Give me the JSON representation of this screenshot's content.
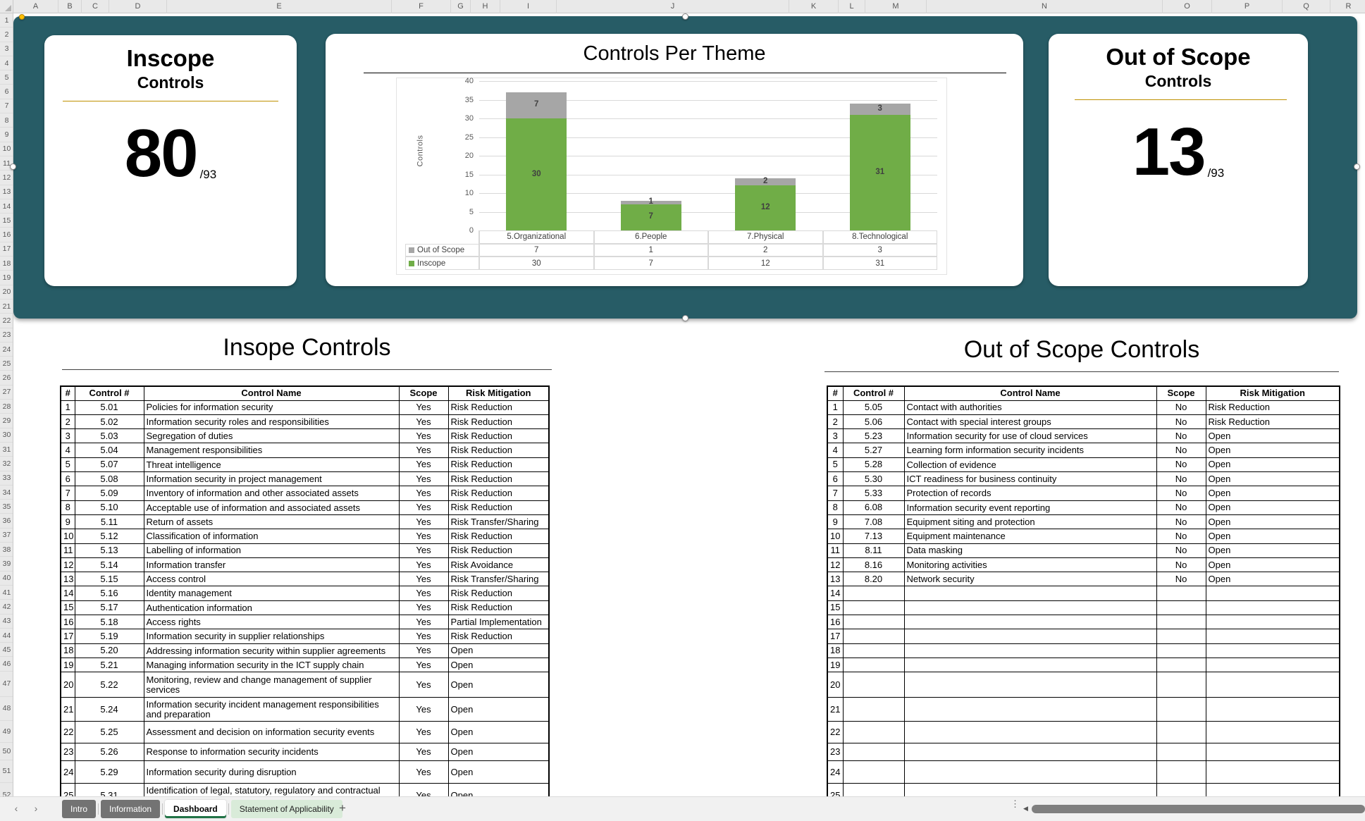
{
  "spreadsheet": {
    "column_letters": [
      "A",
      "B",
      "C",
      "D",
      "E",
      "F",
      "G",
      "H",
      "I",
      "J",
      "K",
      "L",
      "M",
      "N",
      "O",
      "P",
      "Q",
      "R"
    ],
    "row_count": 52
  },
  "banner": {
    "color": "#275C66",
    "inscope_card": {
      "title": "Inscope",
      "subtitle": "Controls",
      "value": "80",
      "total": "/93"
    },
    "outscope_card": {
      "title": "Out of Scope",
      "subtitle": "Controls",
      "value": "13",
      "total": "/93"
    }
  },
  "chart_data": {
    "type": "bar",
    "stacked": true,
    "title": "Controls Per Theme",
    "ylabel": "Controls",
    "ylim": [
      0,
      40
    ],
    "ytick_step": 5,
    "grid": true,
    "legend_position": "data-table-left",
    "categories": [
      "5.Organizational",
      "6.People",
      "7.Physical",
      "8.Technological"
    ],
    "series": [
      {
        "name": "Inscope",
        "color": "#70AD47",
        "values": [
          30,
          7,
          12,
          31
        ]
      },
      {
        "name": "Out of Scope",
        "color": "#A6A6A6",
        "values": [
          7,
          1,
          2,
          3
        ]
      }
    ]
  },
  "left_table": {
    "title": "Insope Controls",
    "headers": [
      "#",
      "Control #",
      "Control Name",
      "Scope",
      "Risk Mitigation"
    ],
    "rows": [
      [
        "1",
        "5.01",
        "Policies for information security",
        "Yes",
        "Risk Reduction"
      ],
      [
        "2",
        "5.02",
        "Information security roles and responsibilities",
        "Yes",
        "Risk Reduction"
      ],
      [
        "3",
        "5.03",
        "Segregation of duties",
        "Yes",
        "Risk Reduction"
      ],
      [
        "4",
        "5.04",
        "Management responsibilities",
        "Yes",
        "Risk Reduction"
      ],
      [
        "5",
        "5.07",
        "Threat intelligence",
        "Yes",
        "Risk Reduction"
      ],
      [
        "6",
        "5.08",
        "Information security in project management",
        "Yes",
        "Risk Reduction"
      ],
      [
        "7",
        "5.09",
        "Inventory of information and other associated assets",
        "Yes",
        "Risk Reduction"
      ],
      [
        "8",
        "5.10",
        "Acceptable use of information and associated assets",
        "Yes",
        "Risk Reduction"
      ],
      [
        "9",
        "5.11",
        "Return of assets",
        "Yes",
        "Risk Transfer/Sharing"
      ],
      [
        "10",
        "5.12",
        "Classification of information",
        "Yes",
        "Risk Reduction"
      ],
      [
        "11",
        "5.13",
        "Labelling of information",
        "Yes",
        "Risk Reduction"
      ],
      [
        "12",
        "5.14",
        "Information transfer",
        "Yes",
        "Risk Avoidance"
      ],
      [
        "13",
        "5.15",
        "Access control",
        "Yes",
        "Risk Transfer/Sharing"
      ],
      [
        "14",
        "5.16",
        "Identity management",
        "Yes",
        "Risk Reduction"
      ],
      [
        "15",
        "5.17",
        "Authentication information",
        "Yes",
        "Risk Reduction"
      ],
      [
        "16",
        "5.18",
        "Access rights",
        "Yes",
        "Partial Implementation"
      ],
      [
        "17",
        "5.19",
        "Information security in supplier relationships",
        "Yes",
        "Risk Reduction"
      ],
      [
        "18",
        "5.20",
        "Addressing information security within supplier agreements",
        "Yes",
        "Open"
      ],
      [
        "19",
        "5.21",
        "Managing information security in the ICT supply chain",
        "Yes",
        "Open"
      ],
      [
        "20",
        "5.22",
        "Monitoring, review and change management of supplier services",
        "Yes",
        "Open"
      ],
      [
        "21",
        "5.24",
        "Information security incident management responsibilities and preparation",
        "Yes",
        "Open"
      ],
      [
        "22",
        "5.25",
        "Assessment and decision on information security events",
        "Yes",
        "Open"
      ],
      [
        "23",
        "5.26",
        "Response to information security incidents",
        "Yes",
        "Open"
      ],
      [
        "24",
        "5.29",
        "Information security during disruption",
        "Yes",
        "Open"
      ],
      [
        "25",
        "5.31",
        "Identification of legal, statutory, regulatory and contractual requirements",
        "Yes",
        "Open"
      ]
    ]
  },
  "right_table": {
    "title": "Out of Scope Controls",
    "headers": [
      "#",
      "Control #",
      "Control Name",
      "Scope",
      "Risk Mitigation"
    ],
    "rows": [
      [
        "1",
        "5.05",
        "Contact with authorities",
        "No",
        "Risk Reduction"
      ],
      [
        "2",
        "5.06",
        "Contact with special interest groups",
        "No",
        "Risk Reduction"
      ],
      [
        "3",
        "5.23",
        "Information security for use of cloud services",
        "No",
        "Open"
      ],
      [
        "4",
        "5.27",
        "Learning form information security incidents",
        "No",
        "Open"
      ],
      [
        "5",
        "5.28",
        "Collection of evidence",
        "No",
        "Open"
      ],
      [
        "6",
        "5.30",
        "ICT readiness for business continuity",
        "No",
        "Open"
      ],
      [
        "7",
        "5.33",
        "Protection of records",
        "No",
        "Open"
      ],
      [
        "8",
        "6.08",
        "Information security event reporting",
        "No",
        "Open"
      ],
      [
        "9",
        "7.08",
        "Equipment siting and protection",
        "No",
        "Open"
      ],
      [
        "10",
        "7.13",
        "Equipment maintenance",
        "No",
        "Open"
      ],
      [
        "11",
        "8.11",
        "Data masking",
        "No",
        "Open"
      ],
      [
        "12",
        "8.16",
        "Monitoring activities",
        "No",
        "Open"
      ],
      [
        "13",
        "8.20",
        "Network security",
        "No",
        "Open"
      ],
      [
        "14",
        "",
        "",
        "",
        ""
      ],
      [
        "15",
        "",
        "",
        "",
        ""
      ],
      [
        "16",
        "",
        "",
        "",
        ""
      ],
      [
        "17",
        "",
        "",
        "",
        ""
      ],
      [
        "18",
        "",
        "",
        "",
        ""
      ],
      [
        "19",
        "",
        "",
        "",
        ""
      ],
      [
        "20",
        "",
        "",
        "",
        ""
      ],
      [
        "21",
        "",
        "",
        "",
        ""
      ],
      [
        "22",
        "",
        "",
        "",
        ""
      ],
      [
        "23",
        "",
        "",
        "",
        ""
      ],
      [
        "24",
        "",
        "",
        "",
        ""
      ],
      [
        "25",
        "",
        "",
        "",
        ""
      ]
    ]
  },
  "sheet_tabs": {
    "tabs": [
      {
        "label": "Intro",
        "state": "inactive"
      },
      {
        "label": "Information",
        "state": "inactive"
      },
      {
        "label": "Dashboard",
        "state": "active"
      },
      {
        "label": "Statement of Applicability",
        "state": "highlight"
      }
    ],
    "add_label": "+",
    "nav_prev": "‹",
    "nav_next": "›"
  }
}
